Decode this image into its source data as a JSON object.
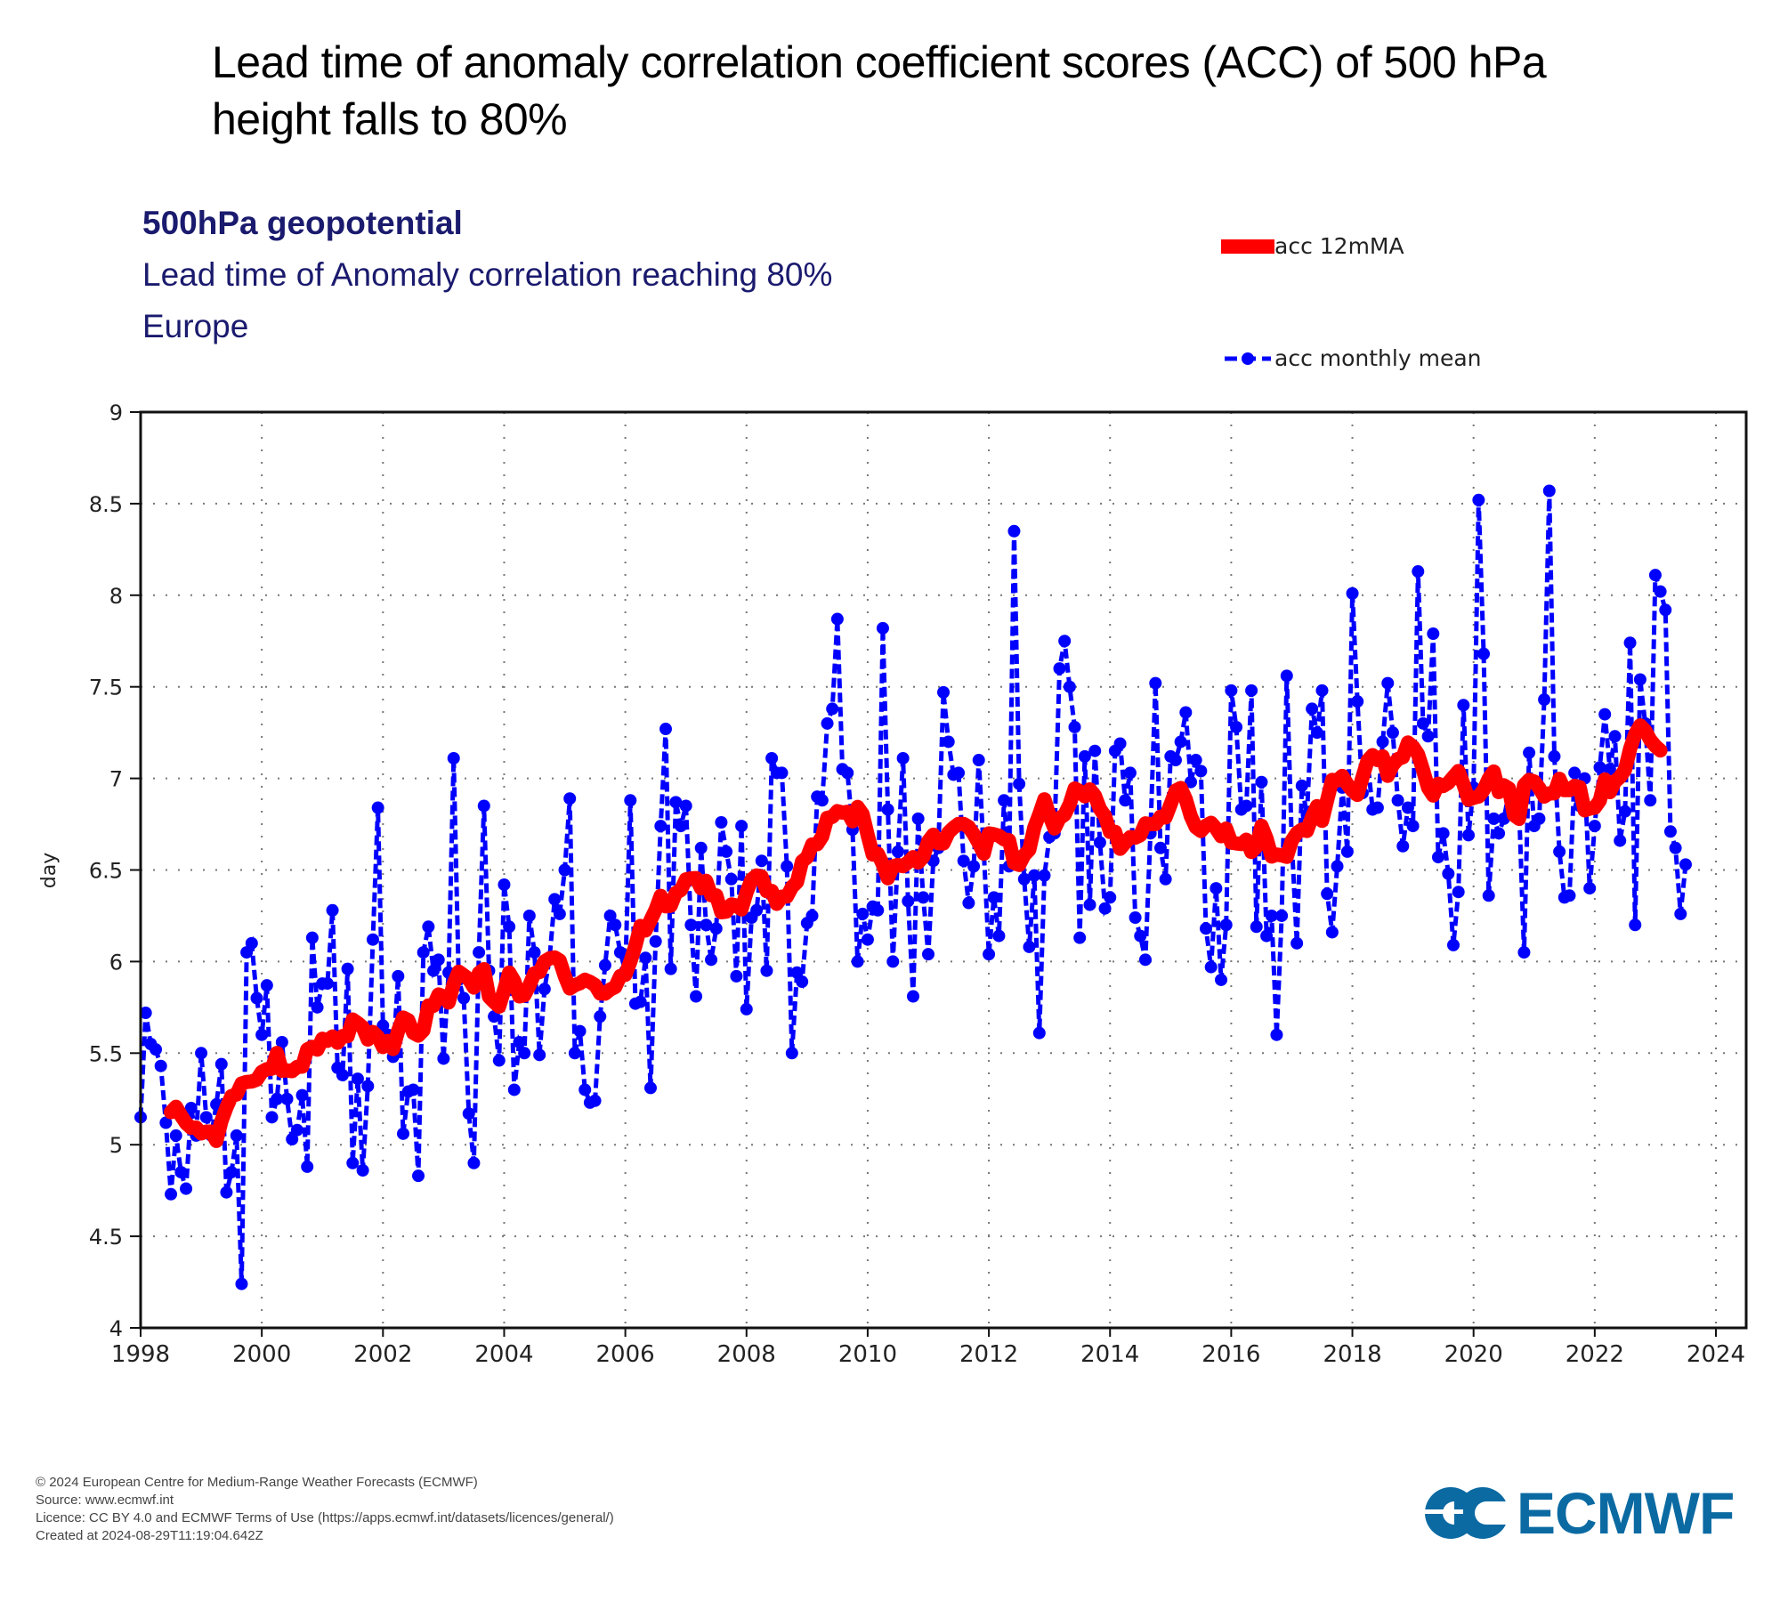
{
  "slide_title": "Lead time of anomaly correlation coefficient  scores (ACC) of 500 hPa height falls to  80%",
  "chart_header": {
    "line1": "500hPa geopotential",
    "line2": "Lead time of Anomaly correlation reaching 80%",
    "line3": "Europe"
  },
  "legend": {
    "ma_label": "acc 12mMA",
    "monthly_label": "acc monthly mean"
  },
  "footer": {
    "line1": "© 2024 European Centre for Medium-Range Weather Forecasts (ECMWF)",
    "line2": "Source: www.ecmwf.int",
    "line3": "Licence: CC BY 4.0 and ECMWF Terms of Use (https://apps.ecmwf.int/datasets/licences/general/)",
    "line4": "Created at 2024-08-29T11:19:04.642Z"
  },
  "logo": {
    "text": "ECMWF",
    "color": "#0b6aa2"
  },
  "chart_data": {
    "type": "line",
    "title": "500hPa geopotential — Lead time of Anomaly correlation reaching 80% — Europe",
    "xlabel": "",
    "ylabel": "day",
    "xlim": [
      1998,
      2024.6
    ],
    "ylim": [
      4,
      9
    ],
    "grid": true,
    "legend_position": "top-right",
    "x_ticks": [
      "1998",
      "2000",
      "2002",
      "2004",
      "2006",
      "2008",
      "2010",
      "2012",
      "2014",
      "2016",
      "2018",
      "2020",
      "2022",
      "2024"
    ],
    "x_tick_values": [
      1998,
      2000,
      2002,
      2004,
      2006,
      2008,
      2010,
      2012,
      2014,
      2016,
      2018,
      2020,
      2022,
      2024
    ],
    "y_ticks": [
      "4",
      "4.5",
      "5",
      "5.5",
      "6",
      "6.5",
      "7",
      "7.5",
      "8",
      "8.5",
      "9"
    ],
    "y_tick_values": [
      4,
      4.5,
      5,
      5.5,
      6,
      6.5,
      7,
      7.5,
      8,
      8.5,
      9
    ],
    "colors": {
      "monthly": "#0000ff",
      "ma": "#ff0000"
    },
    "start": "1998-01",
    "series": [
      {
        "name": "acc monthly mean",
        "style": "dashed-with-markers",
        "values": [
          5.15,
          5.72,
          5.55,
          5.52,
          5.43,
          5.12,
          4.73,
          5.05,
          4.85,
          4.76,
          5.2,
          5.05,
          5.5,
          5.15,
          5.05,
          5.22,
          5.44,
          4.74,
          4.85,
          5.05,
          4.24,
          6.05,
          6.1,
          5.8,
          5.6,
          5.87,
          5.15,
          5.25,
          5.56,
          5.25,
          5.03,
          5.08,
          5.27,
          4.88,
          6.13,
          5.75,
          5.88,
          5.88,
          6.28,
          5.42,
          5.38,
          5.96,
          4.9,
          5.36,
          4.86,
          5.32,
          6.12,
          6.84,
          5.65,
          5.6,
          5.48,
          5.92,
          5.06,
          5.29,
          5.3,
          4.83,
          6.05,
          6.19,
          5.95,
          6.01,
          5.47,
          5.94,
          7.11,
          5.9,
          5.8,
          5.17,
          4.9,
          6.05,
          6.85,
          5.95,
          5.7,
          5.46,
          6.42,
          6.19,
          5.3,
          5.56,
          5.5,
          6.25,
          6.05,
          5.49,
          5.85,
          6.02,
          6.34,
          6.26,
          6.5,
          6.89,
          5.5,
          5.62,
          5.3,
          5.23,
          5.24,
          5.7,
          5.98,
          6.25,
          6.2,
          6.05,
          5.95,
          6.88,
          5.77,
          5.78,
          6.02,
          5.31,
          6.11,
          6.74,
          7.27,
          5.96,
          6.87,
          6.74,
          6.85,
          6.2,
          5.81,
          6.62,
          6.2,
          6.01,
          6.18,
          6.76,
          6.6,
          6.45,
          5.92,
          6.74,
          5.74,
          6.24,
          6.28,
          6.55,
          5.95,
          7.11,
          7.03,
          7.03,
          6.52,
          5.5,
          5.94,
          5.89,
          6.21,
          6.25,
          6.9,
          6.88,
          7.3,
          7.38,
          7.87,
          7.05,
          7.03,
          6.72,
          6.0,
          6.26,
          6.12,
          6.3,
          6.28,
          7.82,
          6.83,
          6.0,
          6.6,
          7.11,
          6.33,
          5.81,
          6.78,
          6.35,
          6.04,
          6.55,
          6.62,
          7.47,
          7.2,
          7.02,
          7.03,
          6.55,
          6.32,
          6.52,
          7.1,
          6.6,
          6.04,
          6.35,
          6.14,
          6.88,
          6.52,
          8.35,
          6.97,
          6.45,
          6.08,
          6.47,
          5.61,
          6.47,
          6.68,
          6.7,
          7.6,
          7.75,
          7.5,
          7.28,
          6.13,
          7.12,
          6.31,
          7.15,
          6.65,
          6.29,
          6.35,
          7.15,
          7.19,
          6.88,
          7.03,
          6.24,
          6.14,
          6.01,
          6.7,
          7.52,
          6.62,
          6.45,
          7.12,
          7.1,
          7.2,
          7.36,
          6.98,
          7.1,
          7.04,
          6.18,
          5.97,
          6.4,
          5.9,
          6.2,
          7.48,
          7.28,
          6.83,
          6.85,
          7.48,
          6.19,
          6.98,
          6.14,
          6.25,
          5.6,
          6.25,
          7.56,
          6.65,
          6.1,
          6.96,
          6.8,
          7.38,
          7.25,
          7.48,
          6.37,
          6.16,
          6.52,
          6.95,
          6.6,
          8.01,
          7.42,
          6.92,
          7.1,
          6.83,
          6.84,
          7.2,
          7.52,
          7.25,
          6.88,
          6.63,
          6.84,
          6.74,
          8.13,
          7.3,
          7.23,
          7.79,
          6.57,
          6.7,
          6.48,
          6.09,
          6.38,
          7.4,
          6.69,
          6.95,
          8.52,
          7.68,
          6.36,
          6.78,
          6.7,
          6.78,
          6.92,
          6.82,
          6.85,
          6.05,
          7.14,
          6.74,
          6.78,
          7.43,
          8.57,
          7.12,
          6.6,
          6.35,
          6.36,
          7.03,
          6.85,
          7.0,
          6.4,
          6.74,
          7.06,
          7.35,
          7.05,
          7.23,
          6.66,
          6.82,
          7.74,
          6.2,
          7.54,
          7.3,
          6.88,
          8.11,
          8.02,
          7.92,
          6.71,
          6.62,
          6.26,
          6.53
        ]
      },
      {
        "name": "acc 12mMA",
        "style": "thick-solid",
        "start": "1998-07",
        "values": "12-month centered moving average of acc monthly mean"
      }
    ]
  }
}
